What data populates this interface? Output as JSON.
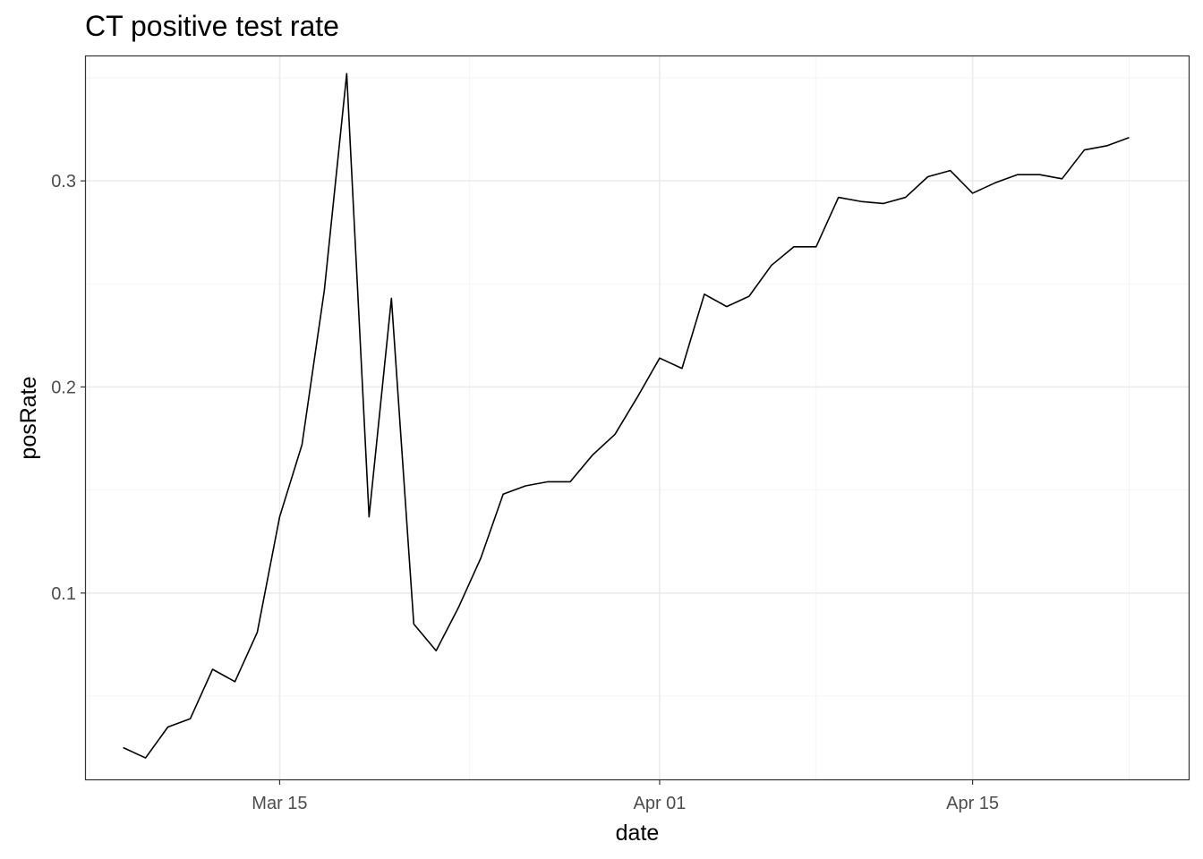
{
  "chart_data": {
    "type": "line",
    "title": "CT positive test rate",
    "xlabel": "date",
    "ylabel": "posRate",
    "x_ticks": [
      {
        "label": "Mar 15",
        "date": "2020-03-15"
      },
      {
        "label": "Apr 01",
        "date": "2020-04-01"
      },
      {
        "label": "Apr 15",
        "date": "2020-04-15"
      }
    ],
    "y_ticks": [
      {
        "label": "0.1",
        "value": 0.1
      },
      {
        "label": "0.2",
        "value": 0.2
      },
      {
        "label": "0.3",
        "value": 0.3
      }
    ],
    "xlim": [
      "2020-03-06 08:00",
      "2020-04-24 16:00"
    ],
    "ylim": [
      0.0096,
      0.3604
    ],
    "grid": true,
    "x": [
      "2020-03-08",
      "2020-03-09",
      "2020-03-10",
      "2020-03-11",
      "2020-03-12",
      "2020-03-13",
      "2020-03-14",
      "2020-03-15",
      "2020-03-16",
      "2020-03-17",
      "2020-03-18",
      "2020-03-19",
      "2020-03-20",
      "2020-03-21",
      "2020-03-22",
      "2020-03-23",
      "2020-03-24",
      "2020-03-25",
      "2020-03-26",
      "2020-03-27",
      "2020-03-28",
      "2020-03-29",
      "2020-03-30",
      "2020-03-31",
      "2020-04-01",
      "2020-04-02",
      "2020-04-03",
      "2020-04-04",
      "2020-04-05",
      "2020-04-06",
      "2020-04-07",
      "2020-04-08",
      "2020-04-09",
      "2020-04-10",
      "2020-04-11",
      "2020-04-12",
      "2020-04-13",
      "2020-04-14",
      "2020-04-15",
      "2020-04-16",
      "2020-04-17",
      "2020-04-18",
      "2020-04-19",
      "2020-04-20",
      "2020-04-21",
      "2020-04-22"
    ],
    "y": [
      0.025,
      0.02,
      0.035,
      0.039,
      0.063,
      0.057,
      0.081,
      0.137,
      0.172,
      0.247,
      0.352,
      0.137,
      0.243,
      0.085,
      0.072,
      0.093,
      0.117,
      0.148,
      0.152,
      0.154,
      0.154,
      0.167,
      0.177,
      0.195,
      0.214,
      0.209,
      0.245,
      0.239,
      0.244,
      0.259,
      0.268,
      0.268,
      0.292,
      0.29,
      0.289,
      0.292,
      0.302,
      0.305,
      0.294,
      0.299,
      0.303,
      0.303,
      0.301,
      0.315,
      0.317,
      0.321
    ]
  }
}
